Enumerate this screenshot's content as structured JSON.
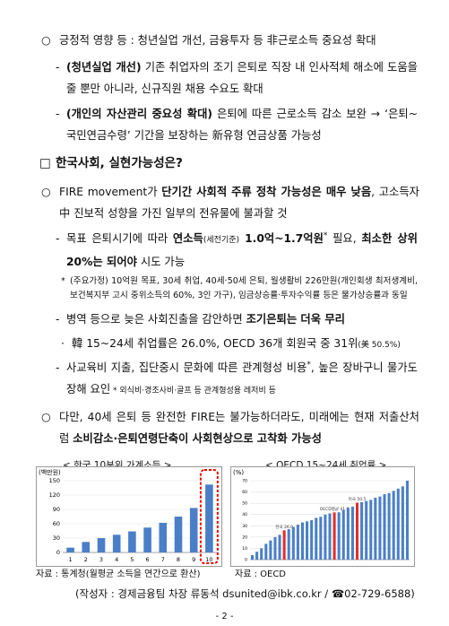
{
  "items": [
    {
      "bullet": "○",
      "text": [
        "긍정적 영향 등 : 청년실업 개선, 금융투자 등 非근로소득 중요성 확대"
      ]
    },
    {
      "bullet": "-",
      "text": [
        "(청년실업 개선)",
        " 기존 취업자의 조기 은퇴로 직장 내 인사적체 해소에 도움을 줄 뿐만 아니라, 신규직원 채용 수요도 확대"
      ]
    },
    {
      "bullet": "-",
      "text": [
        "(개인의 자산관리 중요성 확대)",
        " 은퇴에 따른 근로소득 감소 보완 → ‘은퇴~국민연금수령’ 기간을 보장하는 新유형 연금상품 가능성"
      ]
    },
    {
      "bullet": "□",
      "text": [
        "한국사회, 실현가능성은?"
      ]
    },
    {
      "bullet": "○",
      "text": [
        "FIRE movement가 ",
        "단기간 사회적 주류 정착 가능성은 매우 낮음",
        ", 고소득자 中 진보적 성향을 가진 일부의 전유물에 불과할 것"
      ]
    },
    {
      "bullet": "-",
      "text": [
        "목표 은퇴시기에 따라 ",
        "연소득",
        "(세전기준)",
        " 1.0억~1.7억원",
        "*",
        " 필요, ",
        "최소한 상위 20%는 되어야",
        " 시도 가능"
      ]
    },
    {
      "bullet": "*",
      "text": [
        "(주요가정) 10억원 목표, 30세 취업, 40세·50세 은퇴, 월생활비 226만원(개인회생 최저생계비, 보건복지부 고시 중위소득의 60%, 3인 가구), 임금상승률·투자수익률 등은 물가상승률과 동일"
      ]
    },
    {
      "bullet": "-",
      "text": [
        "병역 등으로 늦은 사회진출을 감안하면 ",
        "조기은퇴는 더욱 무리"
      ]
    },
    {
      "bullet": "·",
      "text": [
        "韓 15~24세 취업률은 26.0%, OECD 36개 회원국 중 31위",
        "(美 50.5%)"
      ]
    },
    {
      "bullet": "-",
      "text": [
        "사교육비 지출, 집단중시 문화에 따른 관계형성 비용",
        "*",
        ", 높은 장바구니 물가도 장해 요인",
        "  * 외식비·경조사비·골프 등 관계형성용 레저비 등"
      ]
    },
    {
      "bullet": "○",
      "text": [
        "다만, 40세 은퇴 등 완전한 FIRE는 불가능하더라도, 미래에는 현재 저출산처럼 ",
        "소비감소·은퇴연령단축이 사회현상으로 고착화 가능성"
      ]
    }
  ],
  "charts": [
    {
      "type": "bar",
      "title": "< 한국 10분위 가계소득 >",
      "y_label": "(백만원)",
      "source": "자료 : 통계청(월평균 소득을 연간으로 환산)",
      "categories": [
        "1",
        "2",
        "3",
        "4",
        "5",
        "6",
        "7",
        "8",
        "9",
        "10"
      ],
      "values": [
        10,
        22,
        30,
        37,
        44,
        52,
        62,
        75,
        93,
        142
      ],
      "color": "#4a7fc8",
      "ylim": [
        0,
        150
      ],
      "yticks": [
        0,
        30,
        60,
        90,
        120,
        150
      ],
      "grid": true
    },
    {
      "type": "bar",
      "title": "< OECD 15~24세 취업률 >",
      "y_label": "(%)",
      "source": "자료 : OECD",
      "values": [
        4,
        7,
        10,
        14,
        17,
        20,
        22,
        26.0,
        27,
        29,
        31,
        33,
        34,
        35,
        37,
        38,
        40,
        41,
        41.9,
        42,
        44,
        46,
        47,
        50.5,
        51,
        52,
        53,
        55,
        56,
        58,
        59,
        61,
        63,
        65,
        70
      ],
      "value_labels": [
        null,
        null,
        null,
        null,
        null,
        null,
        null,
        "한국 26.0",
        null,
        null,
        null,
        null,
        null,
        null,
        null,
        null,
        null,
        null,
        "OECD평균 41.9",
        null,
        null,
        null,
        null,
        "미국 50.5",
        null,
        null,
        null,
        null,
        null,
        null,
        null,
        null,
        null,
        null,
        null
      ],
      "colors": [
        "#4a7fc8",
        "#4a7fc8",
        "#4a7fc8",
        "#4a7fc8",
        "#4a7fc8",
        "#4a7fc8",
        "#4a7fc8",
        "#e0302a",
        "#4a7fc8",
        "#4a7fc8",
        "#4a7fc8",
        "#4a7fc8",
        "#4a7fc8",
        "#4a7fc8",
        "#4a7fc8",
        "#4a7fc8",
        "#4a7fc8",
        "#4a7fc8",
        "#e0302a",
        "#4a7fc8",
        "#4a7fc8",
        "#4a7fc8",
        "#4a7fc8",
        "#e0302a",
        "#4a7fc8",
        "#4a7fc8",
        "#4a7fc8",
        "#4a7fc8",
        "#4a7fc8",
        "#4a7fc8",
        "#4a7fc8",
        "#4a7fc8",
        "#4a7fc8",
        "#4a7fc8",
        "#4a7fc8"
      ],
      "ylim": [
        0,
        70
      ],
      "yticks": [
        0,
        10,
        20,
        30,
        40,
        50,
        60,
        70
      ],
      "grid": true
    }
  ],
  "footer": "(작성자 : 경제금융팀 차장 류동석 dsunited@ibk.co.kr / ☎02-729-6588)",
  "page_number": "- 2 -"
}
